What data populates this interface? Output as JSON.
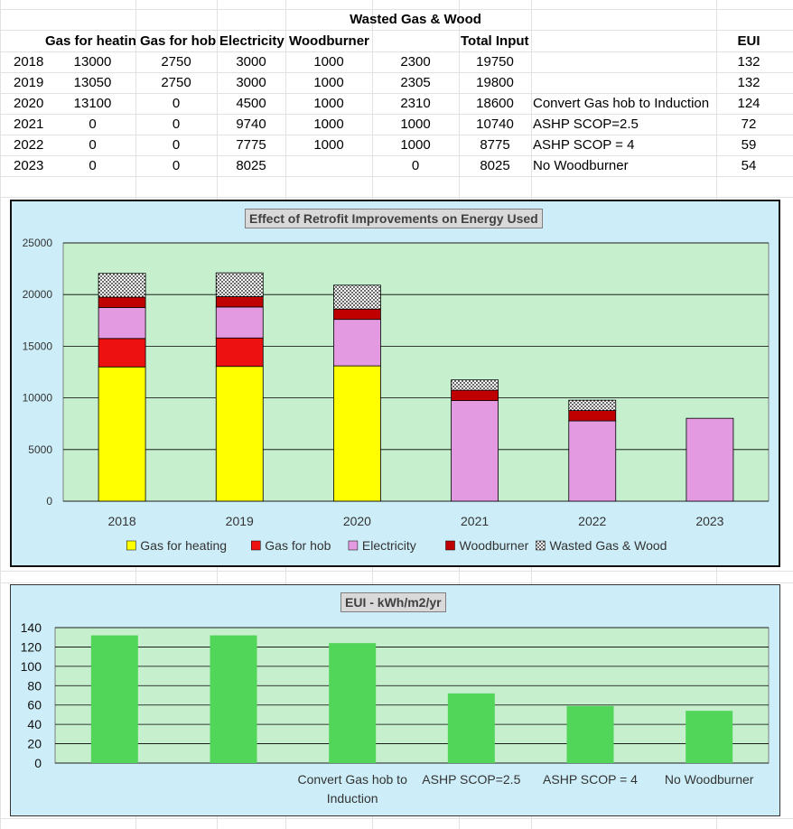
{
  "table": {
    "header_top": "Wasted Gas & Wood",
    "headers": [
      "Gas for heating",
      "Gas for hob",
      "Electricity",
      "Woodburner",
      "",
      "Total Input",
      "",
      "EUI"
    ],
    "rows": [
      {
        "year": "2018",
        "gas_heating": "13000",
        "gas_hob": "2750",
        "electricity": "3000",
        "woodburner": "1000",
        "wasted": "2300",
        "total": "19750",
        "note": "",
        "eui": "132"
      },
      {
        "year": "2019",
        "gas_heating": "13050",
        "gas_hob": "2750",
        "electricity": "3000",
        "woodburner": "1000",
        "wasted": "2305",
        "total": "19800",
        "note": "",
        "eui": "132"
      },
      {
        "year": "2020",
        "gas_heating": "13100",
        "gas_hob": "0",
        "electricity": "4500",
        "woodburner": "1000",
        "wasted": "2310",
        "total": "18600",
        "note": "Convert Gas hob to Induction",
        "eui": "124"
      },
      {
        "year": "2021",
        "gas_heating": "0",
        "gas_hob": "0",
        "electricity": "9740",
        "woodburner": "1000",
        "wasted": "1000",
        "total": "10740",
        "note": "ASHP SCOP=2.5",
        "eui": "72"
      },
      {
        "year": "2022",
        "gas_heating": "0",
        "gas_hob": "0",
        "electricity": "7775",
        "woodburner": "1000",
        "wasted": "1000",
        "total": "8775",
        "note": "ASHP SCOP = 4",
        "eui": "59"
      },
      {
        "year": "2023",
        "gas_heating": "0",
        "gas_hob": "0",
        "electricity": "8025",
        "woodburner": "",
        "wasted": "0",
        "total": "8025",
        "note": "No Woodburner",
        "eui": "54"
      }
    ]
  },
  "colors": {
    "plot_bg": "#c6efce",
    "chart_bg": "#cdeef8",
    "gas_heating": "#ffff00",
    "gas_hob": "#ee1111",
    "electricity": "#e39ae0",
    "woodburner": "#c00000",
    "wasted": "#ffffff",
    "eui_bar": "#52d65a"
  },
  "chart_data": [
    {
      "type": "bar",
      "stacked": true,
      "title": "Effect of Retrofit Improvements on Energy Used",
      "categories": [
        "2018",
        "2019",
        "2020",
        "2021",
        "2022",
        "2023"
      ],
      "series": [
        {
          "name": "Gas for heating",
          "values": [
            13000,
            13050,
            13100,
            0,
            0,
            0
          ]
        },
        {
          "name": "Gas for hob",
          "values": [
            2750,
            2750,
            0,
            0,
            0,
            0
          ]
        },
        {
          "name": "Electricity",
          "values": [
            3000,
            3000,
            4500,
            9740,
            7775,
            8025
          ]
        },
        {
          "name": "Woodburner",
          "values": [
            1000,
            1000,
            1000,
            1000,
            1000,
            0
          ]
        },
        {
          "name": "Wasted Gas & Wood",
          "values": [
            2300,
            2305,
            2310,
            1000,
            1000,
            0
          ]
        }
      ],
      "ylim": [
        0,
        25000
      ],
      "yticks": [
        "0",
        "5000",
        "10000",
        "15000",
        "20000",
        "25000"
      ],
      "grid": true,
      "legend": "bottom"
    },
    {
      "type": "bar",
      "title": "EUI - kWh/m2/yr",
      "categories": [
        "",
        "",
        "Convert Gas hob to Induction",
        "ASHP SCOP=2.5",
        "ASHP SCOP = 4",
        "No Woodburner"
      ],
      "series": [
        {
          "values": [
            132,
            132,
            124,
            72,
            59,
            54
          ]
        }
      ],
      "ylim": [
        0,
        140
      ],
      "yticks": [
        "0",
        "20",
        "40",
        "60",
        "80",
        "100",
        "120",
        "140"
      ],
      "grid": true,
      "legend": "none"
    }
  ]
}
